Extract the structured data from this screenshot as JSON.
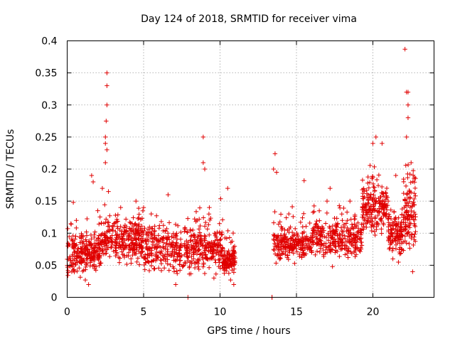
{
  "chart_data": {
    "type": "scatter",
    "title": "Day 124 of 2018, SRMTID for receiver vima",
    "xlabel": "GPS time / hours",
    "ylabel": "SRMTID / TECUs",
    "xlim": [
      0,
      24
    ],
    "ylim": [
      0,
      0.4
    ],
    "grid": true,
    "marker": "+",
    "marker_color": "#e00000",
    "x_ticks": [
      0,
      5,
      10,
      15,
      20
    ],
    "x_tick_labels": [
      "0",
      "5",
      "10",
      "15",
      "20"
    ],
    "y_ticks": [
      0,
      0.05,
      0.1,
      0.15,
      0.2,
      0.25,
      0.3,
      0.35,
      0.4
    ],
    "y_tick_labels": [
      "0",
      "0.05",
      "0.1",
      "0.15",
      "0.2",
      "0.25",
      "0.3",
      "0.35",
      "0.4"
    ],
    "seed_points": [
      [
        0.05,
        0.08
      ],
      [
        0.3,
        0.04
      ],
      [
        0.4,
        0.148
      ],
      [
        0.6,
        0.12
      ],
      [
        1.0,
        0.07
      ],
      [
        1.4,
        0.02
      ],
      [
        1.6,
        0.19
      ],
      [
        1.7,
        0.18
      ],
      [
        2.0,
        0.135
      ],
      [
        2.3,
        0.17
      ],
      [
        2.5,
        0.21
      ],
      [
        2.6,
        0.35
      ],
      [
        2.6,
        0.33
      ],
      [
        2.6,
        0.3
      ],
      [
        2.55,
        0.275
      ],
      [
        2.5,
        0.24
      ],
      [
        2.6,
        0.23
      ],
      [
        2.5,
        0.25
      ],
      [
        2.7,
        0.165
      ],
      [
        3.0,
        0.11
      ],
      [
        3.5,
        0.14
      ],
      [
        4.0,
        0.09
      ],
      [
        4.5,
        0.15
      ],
      [
        5.0,
        0.14
      ],
      [
        5.5,
        0.13
      ],
      [
        6.0,
        0.08
      ],
      [
        6.6,
        0.16
      ],
      [
        7.0,
        0.04
      ],
      [
        7.1,
        0.02
      ],
      [
        7.9,
        0.0
      ],
      [
        8.5,
        0.12
      ],
      [
        8.9,
        0.25
      ],
      [
        8.9,
        0.21
      ],
      [
        9.0,
        0.2
      ],
      [
        9.3,
        0.14
      ],
      [
        9.6,
        0.03
      ],
      [
        10.0,
        0.06
      ],
      [
        10.5,
        0.17
      ],
      [
        10.9,
        0.02
      ],
      [
        13.4,
        0.0
      ],
      [
        13.4,
        0.0
      ],
      [
        13.5,
        0.2
      ],
      [
        13.6,
        0.224
      ],
      [
        13.7,
        0.195
      ],
      [
        14.0,
        0.11
      ],
      [
        14.5,
        0.13
      ],
      [
        15.0,
        0.08
      ],
      [
        15.5,
        0.182
      ],
      [
        16.0,
        0.07
      ],
      [
        16.5,
        0.09
      ],
      [
        17.0,
        0.15
      ],
      [
        17.2,
        0.17
      ],
      [
        18.0,
        0.12
      ],
      [
        18.5,
        0.15
      ],
      [
        19.0,
        0.09
      ],
      [
        19.5,
        0.14
      ],
      [
        20.0,
        0.24
      ],
      [
        20.2,
        0.25
      ],
      [
        20.6,
        0.24
      ],
      [
        21.0,
        0.15
      ],
      [
        21.5,
        0.19
      ],
      [
        22.1,
        0.387
      ],
      [
        22.2,
        0.32
      ],
      [
        22.3,
        0.32
      ],
      [
        22.3,
        0.3
      ],
      [
        22.3,
        0.28
      ],
      [
        22.2,
        0.25
      ],
      [
        22.5,
        0.21
      ],
      [
        22.7,
        0.185
      ],
      [
        22.7,
        0.09
      ],
      [
        22.6,
        0.04
      ]
    ],
    "bands": [
      {
        "x_range": [
          0.0,
          2.2
        ],
        "y_base": 0.068,
        "y_spread": 0.03,
        "count": 240
      },
      {
        "x_range": [
          2.2,
          5.0
        ],
        "y_base": 0.088,
        "y_spread": 0.035,
        "count": 290
      },
      {
        "x_range": [
          5.0,
          8.0
        ],
        "y_base": 0.075,
        "y_spread": 0.035,
        "count": 260
      },
      {
        "x_range": [
          8.0,
          10.2
        ],
        "y_base": 0.078,
        "y_spread": 0.035,
        "count": 220
      },
      {
        "x_range": [
          10.2,
          11.0
        ],
        "y_base": 0.058,
        "y_spread": 0.022,
        "count": 110
      },
      {
        "x_range": [
          13.5,
          16.0
        ],
        "y_base": 0.082,
        "y_spread": 0.025,
        "count": 230
      },
      {
        "x_range": [
          16.0,
          19.3
        ],
        "y_base": 0.092,
        "y_spread": 0.03,
        "count": 290
      },
      {
        "x_range": [
          19.3,
          21.0
        ],
        "y_base": 0.14,
        "y_spread": 0.04,
        "count": 200
      },
      {
        "x_range": [
          21.0,
          22.0
        ],
        "y_base": 0.1,
        "y_spread": 0.035,
        "count": 120
      },
      {
        "x_range": [
          22.0,
          22.8
        ],
        "y_base": 0.13,
        "y_spread": 0.06,
        "count": 110
      }
    ]
  }
}
